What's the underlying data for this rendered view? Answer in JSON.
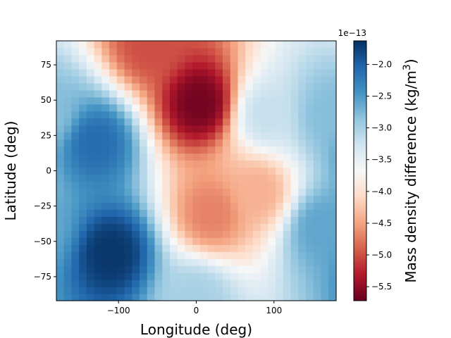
{
  "chart_data": {
    "type": "heatmap",
    "title": "",
    "xlabel": "Longitude (deg)",
    "ylabel": "Latitude (deg)",
    "xlim": [
      -180,
      180
    ],
    "ylim": [
      -92,
      92
    ],
    "x_ticks": [
      {
        "value": -100,
        "label": "−100"
      },
      {
        "value": 0,
        "label": "0"
      },
      {
        "value": 100,
        "label": "100"
      }
    ],
    "y_ticks": [
      {
        "value": 75,
        "label": "75"
      },
      {
        "value": 50,
        "label": "50"
      },
      {
        "value": 25,
        "label": "25"
      },
      {
        "value": 0,
        "label": "0"
      },
      {
        "value": -25,
        "label": "−25"
      },
      {
        "value": -50,
        "label": "−50"
      },
      {
        "value": -75,
        "label": "−75"
      }
    ],
    "colormap": "RdBu",
    "colormap_low_color": "#67001f",
    "colormap_high_color": "#053061",
    "colorbar": {
      "label": "Mass density difference (kg/m³)",
      "label_main": "Mass density difference (kg/m",
      "label_sup": "3",
      "label_close": ")",
      "multiplier_label": "1e−13",
      "range": [
        -5.72,
        -1.63
      ],
      "ticks": [
        {
          "value": -2.0,
          "label": "−2.0"
        },
        {
          "value": -2.5,
          "label": "−2.5"
        },
        {
          "value": -3.0,
          "label": "−3.0"
        },
        {
          "value": -3.5,
          "label": "−3.5"
        },
        {
          "value": -4.0,
          "label": "−4.0"
        },
        {
          "value": -4.5,
          "label": "−4.5"
        },
        {
          "value": -5.0,
          "label": "−5.0"
        },
        {
          "value": -5.5,
          "label": "−5.5"
        }
      ]
    },
    "grid_shape": {
      "n_lon": 37,
      "n_lat": 37,
      "lon_step_deg": 10,
      "lat_step_deg": 5
    },
    "features": [
      {
        "lon": 5,
        "lat": 48,
        "value": -5.65,
        "description": "minimum"
      },
      {
        "lon": -110,
        "lat": -58,
        "value": -1.68,
        "description": "maximum"
      },
      {
        "lon": -130,
        "lat": 20,
        "value": -2.1
      },
      {
        "lon": 90,
        "lat": 40,
        "value": -3.2
      },
      {
        "lon": 170,
        "lat": 40,
        "value": -2.8
      },
      {
        "lon": 160,
        "lat": -40,
        "value": -2.6
      },
      {
        "lon": 20,
        "lat": -30,
        "value": -4.7
      },
      {
        "lon": 80,
        "lat": -15,
        "value": -4.4
      },
      {
        "lon": -60,
        "lat": 90,
        "value": -5.0
      },
      {
        "lon": 0,
        "lat": -90,
        "value": -3.0
      }
    ]
  }
}
